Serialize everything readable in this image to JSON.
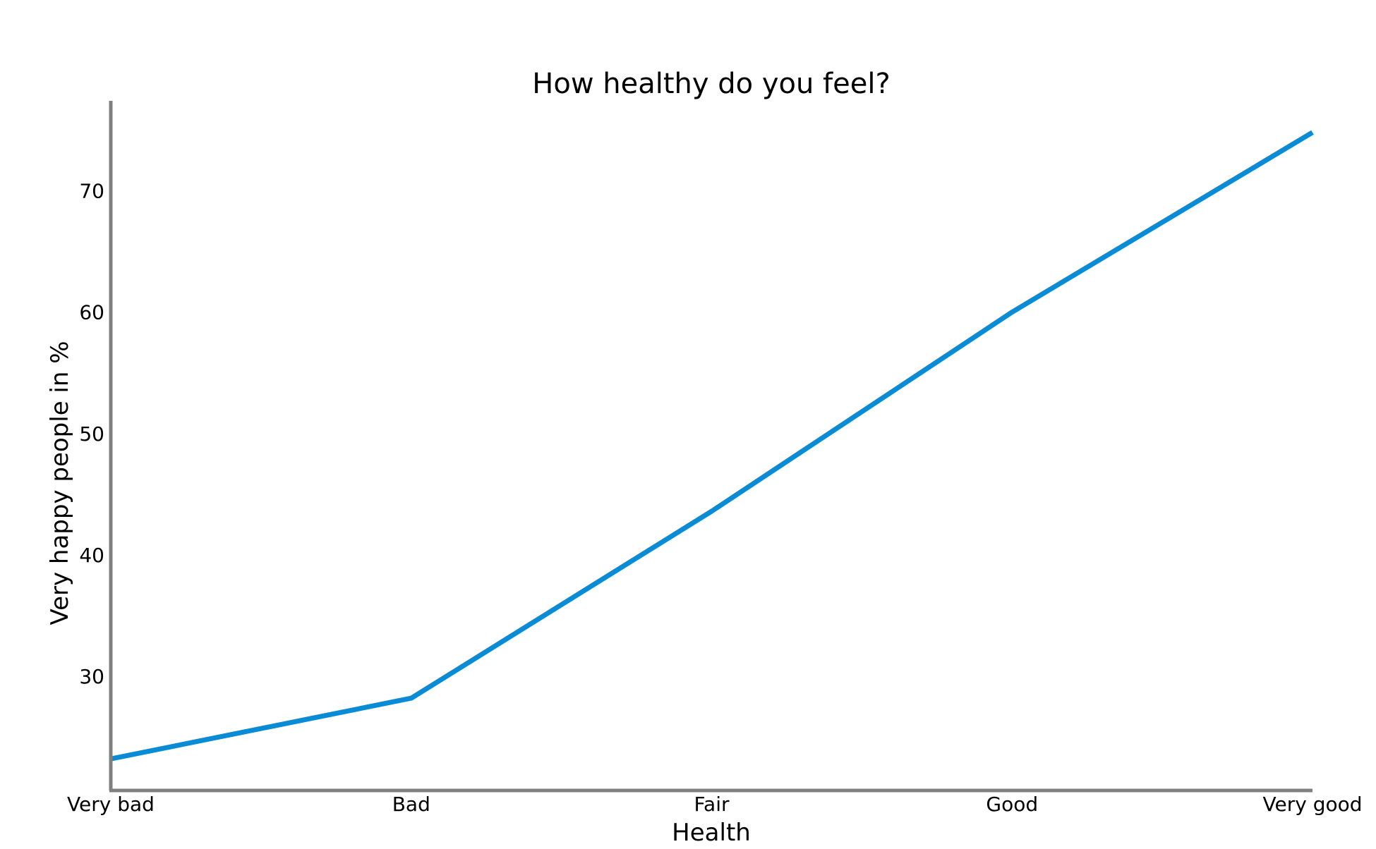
{
  "chart_data": {
    "type": "line",
    "title": "How healthy do you feel?",
    "xlabel": "Health",
    "ylabel": "Very happy people in %",
    "categories": [
      "Very bad",
      "Bad",
      "Fair",
      "Good",
      "Very good"
    ],
    "series": [
      {
        "values": [
          23.2,
          28.2,
          43.6,
          60.0,
          74.8
        ],
        "color": "#0a8bd6"
      }
    ],
    "yticks": [
      30,
      40,
      50,
      60,
      70
    ],
    "ylim": [
      20.6,
      77.4
    ],
    "grid": false,
    "legend": "none",
    "axis_color": "#808080"
  }
}
